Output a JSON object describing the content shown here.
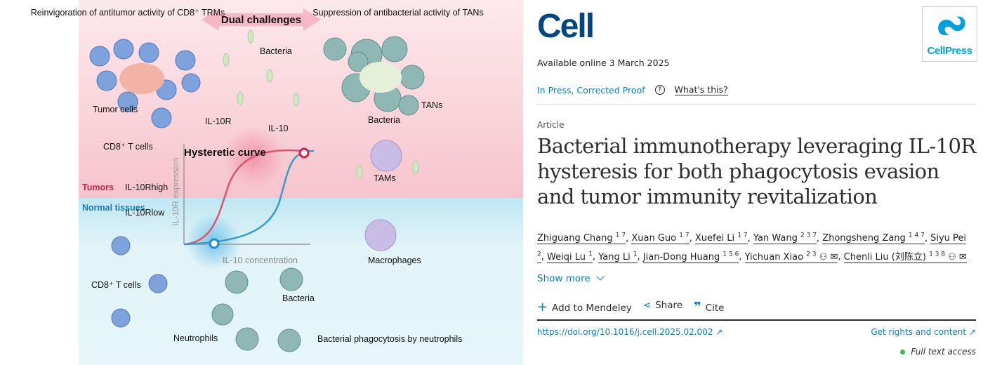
{
  "graphical_abstract": {
    "left_heading": "Reinvigoration of antitumor activity of CD8⁺ TRMs",
    "center_heading": "Dual challenges",
    "right_heading": "Suppression of antibacterial activity of TANs",
    "labels": {
      "bacteria_top": "Bacteria",
      "tumor_cells": "Tumor cells",
      "il10r": "IL-10R",
      "il10": "IL-10",
      "cd8_top": "CD8⁺ T cells",
      "bacteria_right": "Bacteria",
      "tans": "TANs",
      "tams": "TAMs",
      "hysteretic": "Hysteretic curve",
      "y_axis": "IL-10R expression",
      "x_axis": "IL-10 concentration",
      "tumors": "Tumors",
      "il10r_high": "IL-10Rhigh",
      "normal": "Normal tissues",
      "il10r_low": "IL-10Rlow",
      "macrophages": "Macrophages",
      "cd8_bottom": "CD8⁺ T cells",
      "bacteria_bottom": "Bacteria",
      "neutrophils": "Neutrophils",
      "phagocytosis": "Bacterial phagocytosis by neutrophils"
    },
    "colors": {
      "tumor_bg": "#fbe3e8",
      "normal_bg": "#e0f3f8",
      "tumor_curve": "#d9546e",
      "normal_curve": "#3a9bc8"
    }
  },
  "journal": {
    "name": "Cell",
    "publisher": "CellPress"
  },
  "available_online": "Available online 3 March 2025",
  "status": "In Press, Corrected Proof",
  "whats_this": "What's this?",
  "article_type": "Article",
  "title": "Bacterial immunotherapy leveraging IL-10R hysteresis for both phagocytosis evasion and tumor immunity revitalization",
  "authors": [
    {
      "name": "Zhiguang Chang",
      "sup": "1 7"
    },
    {
      "name": "Xuan Guo",
      "sup": "1 7"
    },
    {
      "name": "Xuefei Li",
      "sup": "1 7"
    },
    {
      "name": "Yan Wang",
      "sup": "2 3 7"
    },
    {
      "name": "Zhongsheng Zang",
      "sup": "1 4 7"
    },
    {
      "name": "Siyu Pei",
      "sup": "2"
    },
    {
      "name": "Weiqi Lu",
      "sup": "1"
    },
    {
      "name": "Yang Li",
      "sup": "1"
    },
    {
      "name": "Jian-Dong Huang",
      "sup": "1 5 6"
    },
    {
      "name": "Yichuan Xiao",
      "sup": "2 3"
    },
    {
      "name": "Chenli Liu (刘陈立)",
      "sup": "1 3 8"
    }
  ],
  "show_more": "Show more",
  "actions": {
    "mendeley": "Add to Mendeley",
    "share": "Share",
    "cite": "Cite"
  },
  "doi": "https://doi.org/10.1016/j.cell.2025.02.002",
  "rights": "Get rights and content",
  "access": "Full text access",
  "access_color": "#3fb950"
}
